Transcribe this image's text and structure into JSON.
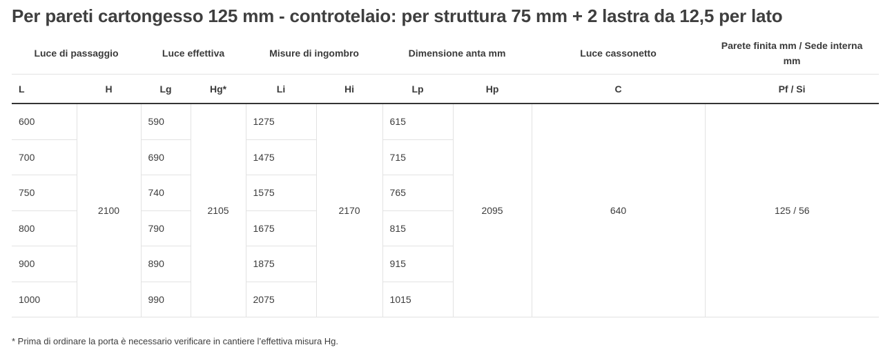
{
  "title": "Per pareti cartongesso 125 mm - controtelaio: per struttura 75 mm + 2 lastra da 12,5 per lato",
  "group_headers": {
    "luce_passaggio": "Luce di passaggio",
    "luce_effettiva": "Luce effettiva",
    "misure_ingombro": "Misure di ingombro",
    "dimensione_anta": "Dimensione anta mm",
    "luce_cassonetto": "Luce cassonetto",
    "parete_finita": "Parete finita mm / Sede interna mm"
  },
  "column_headers": {
    "L": "L",
    "H": "H",
    "Lg": "Lg",
    "Hg": "Hg*",
    "Li": "Li",
    "Hi": "Hi",
    "Lp": "Lp",
    "Hp": "Hp",
    "C": "C",
    "PfSi": "Pf / Si"
  },
  "rows": [
    {
      "L": "600",
      "Lg": "590",
      "Li": "1275",
      "Lp": "615"
    },
    {
      "L": "700",
      "Lg": "690",
      "Li": "1475",
      "Lp": "715"
    },
    {
      "L": "750",
      "Lg": "740",
      "Li": "1575",
      "Lp": "765"
    },
    {
      "L": "800",
      "Lg": "790",
      "Li": "1675",
      "Lp": "815"
    },
    {
      "L": "900",
      "Lg": "890",
      "Li": "1875",
      "Lp": "915"
    },
    {
      "L": "1000",
      "Lg": "990",
      "Li": "2075",
      "Lp": "1015"
    }
  ],
  "merged": {
    "H": "2100",
    "Hg": "2105",
    "Hi": "2170",
    "Hp": "2095",
    "C": "640",
    "PfSi": "125 / 56"
  },
  "footnote": "* Prima di ordinare la porta è necessario verificare in cantiere l’effettiva misura Hg."
}
